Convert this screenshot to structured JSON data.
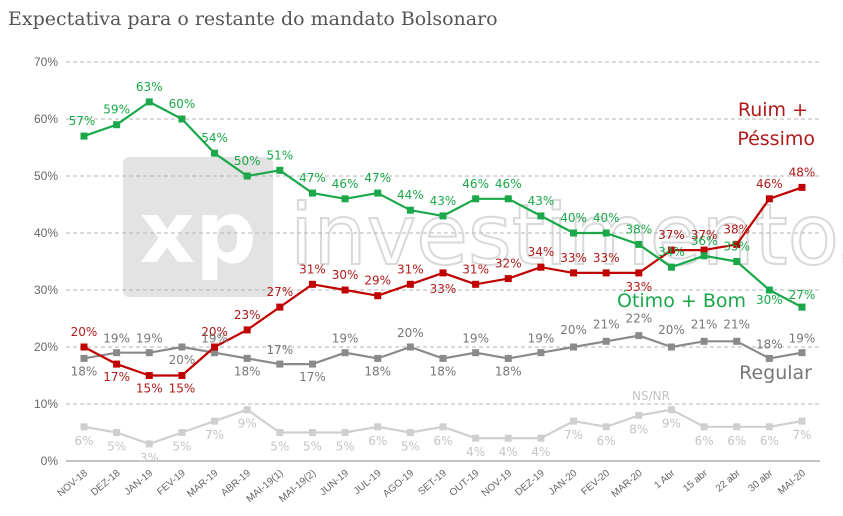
{
  "chart_data": {
    "type": "line",
    "title": "Expectativa para o restante do mandato Bolsonaro",
    "categories": [
      "NOV-18",
      "DEZ-18",
      "JAN-19",
      "FEV-19",
      "MAR-19",
      "ABR-19",
      "MAI-19(1)",
      "MAI-19(2)",
      "JUN-19",
      "JUL-19",
      "AGO-19",
      "SET-19",
      "OUT-19",
      "NOV-19",
      "DEZ-19",
      "JAN-20",
      "FEV-20",
      "MAR-20",
      "1 Abr",
      "15 abr",
      "22 abr",
      "30 abr",
      "MAI-20"
    ],
    "y_ticks": [
      "0%",
      "10%",
      "20%",
      "30%",
      "40%",
      "50%",
      "60%",
      "70%"
    ],
    "ylim": [
      0,
      70
    ],
    "grid": "horizontal dashed",
    "watermark": {
      "logo": "xp",
      "text": "investimentos"
    },
    "series": [
      {
        "name": "Ótimo + Bom",
        "color": "#1aa84a",
        "line_color": "#1aa84a",
        "marker_color": "#1aa84a",
        "values": [
          57,
          59,
          63,
          60,
          54,
          50,
          51,
          47,
          46,
          47,
          44,
          43,
          46,
          46,
          43,
          40,
          40,
          38,
          34,
          36,
          35,
          30,
          27
        ],
        "labels": [
          "57%",
          "59%",
          "63%",
          "60%",
          "54%",
          "50%",
          "51%",
          "47%",
          "46%",
          "47%",
          "44%",
          "43%",
          "46%",
          "46%",
          "43%",
          "40%",
          "40%",
          "38%",
          "34%",
          "36%",
          "35%",
          "30%",
          "27%"
        ]
      },
      {
        "name": "Ruim + Péssimo",
        "name_lines": [
          "Ruim +",
          "Péssimo"
        ],
        "color": "#b01a1a",
        "line_color": "#c00000",
        "marker_color": "#c00000",
        "values": [
          20,
          17,
          15,
          15,
          20,
          23,
          27,
          31,
          30,
          29,
          31,
          33,
          31,
          32,
          34,
          33,
          33,
          33,
          37,
          37,
          38,
          46,
          48
        ],
        "labels": [
          "20%",
          "17%",
          "15%",
          "15%",
          "20%",
          "23%",
          "27%",
          "31%",
          "30%",
          "29%",
          "31%",
          "33%",
          "31%",
          "32%",
          "34%",
          "33%",
          "33%",
          "33%",
          "37%",
          "37%",
          "38%",
          "46%",
          "48%"
        ]
      },
      {
        "name": "Regular",
        "color": "#777777",
        "line_color": "#8a8a8a",
        "marker_color": "#8a8a8a",
        "values": [
          18,
          19,
          19,
          20,
          19,
          18,
          17,
          17,
          19,
          18,
          20,
          18,
          19,
          18,
          19,
          20,
          21,
          22,
          20,
          21,
          21,
          18,
          19
        ],
        "labels": [
          "18%",
          "19%",
          "19%",
          "20%",
          "19%",
          "18%",
          "17%",
          "17%",
          "19%",
          "18%",
          "20%",
          "18%",
          "19%",
          "18%",
          "19%",
          "20%",
          "21%",
          "22%",
          "20%",
          "21%",
          "21%",
          "18%",
          "19%"
        ]
      },
      {
        "name": "NS/NR",
        "color": "#c4c4c4",
        "line_color": "#cfcfcf",
        "marker_color": "#cfcfcf",
        "values": [
          6,
          5,
          3,
          5,
          7,
          9,
          5,
          5,
          5,
          6,
          5,
          6,
          4,
          4,
          4,
          7,
          6,
          8,
          9,
          6,
          6,
          6,
          7
        ],
        "labels": [
          "6%",
          "5%",
          "3%",
          "5%",
          "7%",
          "9%",
          "5%",
          "5%",
          "5%",
          "6%",
          "5%",
          "6%",
          "4%",
          "4%",
          "4%",
          "7%",
          "6%",
          "8%",
          "9%",
          "6%",
          "6%",
          "6%",
          "7%"
        ]
      }
    ]
  }
}
